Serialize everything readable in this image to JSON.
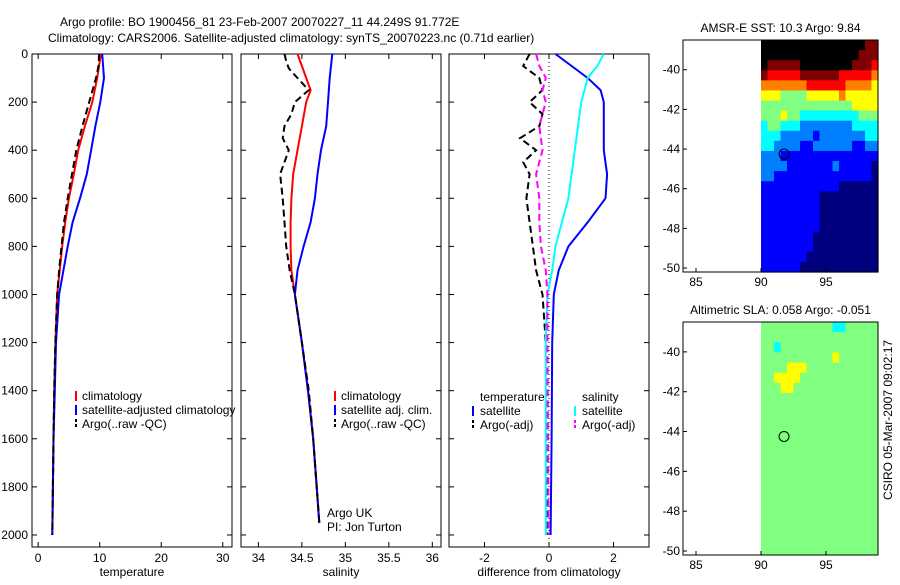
{
  "header": {
    "line1": "Argo profile: BO 1900456_81 23-Feb-2007 20070227_11 44.249S 91.772E",
    "line2": "Climatology: CARS2006. Satellite-adjusted climatology: synTS_20070223.nc (0.71d earlier)"
  },
  "side_text": "CSIRO 05-Mar-2007 09:02:17",
  "chart_data": [
    {
      "type": "line",
      "panel": "temperature",
      "xlabel": "temperature",
      "xlim": [
        -1,
        31.5
      ],
      "ylim": [
        0,
        2050
      ],
      "x_ticks": [
        0,
        10,
        20,
        30
      ],
      "y_ticks": [
        0,
        200,
        400,
        600,
        800,
        1000,
        1200,
        1400,
        1600,
        1800,
        2000
      ],
      "legend_location": "lower-right",
      "legend": [
        "climatology",
        "satellite-adjusted climatology",
        "Argo(..raw -QC)"
      ],
      "series": [
        {
          "name": "climatology",
          "color": "#ff0000",
          "dash": "solid",
          "depth": [
            0,
            100,
            200,
            300,
            400,
            500,
            600,
            700,
            800,
            900,
            1000,
            1200,
            1400,
            1600,
            1800,
            2000
          ],
          "values": [
            10.2,
            9.6,
            8.8,
            7.6,
            6.5,
            5.8,
            5.0,
            4.4,
            3.9,
            3.5,
            3.1,
            2.8,
            2.6,
            2.5,
            2.4,
            2.3
          ]
        },
        {
          "name": "satellite-adjusted climatology",
          "color": "#0000ff",
          "dash": "solid",
          "depth": [
            0,
            100,
            200,
            300,
            400,
            500,
            600,
            700,
            800,
            900,
            1000,
            1200,
            1400,
            1600,
            1800,
            2000
          ],
          "values": [
            10.4,
            10.7,
            10.1,
            9.3,
            8.6,
            7.9,
            6.8,
            5.6,
            4.8,
            4.1,
            3.4,
            2.9,
            2.7,
            2.5,
            2.4,
            2.3
          ]
        },
        {
          "name": "Argo(..raw -QC)",
          "color": "#000000",
          "dash": "dashed",
          "depth": [
            0,
            50,
            100,
            200,
            300,
            400,
            500,
            600,
            700,
            800,
            900,
            1000,
            1200,
            1400,
            1600,
            1800,
            2000
          ],
          "values": [
            9.9,
            9.8,
            9.4,
            8.3,
            7.2,
            6.2,
            5.5,
            4.8,
            4.2,
            3.8,
            3.4,
            3.1,
            2.8,
            2.6,
            2.5,
            2.4,
            2.3
          ]
        }
      ]
    },
    {
      "type": "line",
      "panel": "salinity",
      "xlabel": "salinity",
      "xlim": [
        33.8,
        36.1
      ],
      "ylim": [
        0,
        2050
      ],
      "x_ticks": [
        34,
        34.5,
        35,
        35.5,
        36
      ],
      "legend_location": "lower-right",
      "legend": [
        "climatology",
        "satellite adj. clim.",
        "Argo(..raw -QC)"
      ],
      "annotation": [
        "Argo UK",
        "PI: Jon Turton"
      ],
      "series": [
        {
          "name": "climatology",
          "color": "#ff0000",
          "dash": "solid",
          "depth": [
            0,
            50,
            100,
            150,
            200,
            300,
            400,
            500,
            600,
            700,
            800,
            900,
            1000,
            1200,
            1400,
            1600,
            1800,
            1950
          ],
          "values": [
            34.45,
            34.5,
            34.55,
            34.6,
            34.55,
            34.5,
            34.45,
            34.4,
            34.38,
            34.37,
            34.37,
            34.38,
            34.42,
            34.5,
            34.57,
            34.63,
            34.67,
            34.7
          ]
        },
        {
          "name": "satellite adj. clim.",
          "color": "#0000ff",
          "dash": "solid",
          "depth": [
            0,
            100,
            200,
            300,
            400,
            500,
            600,
            700,
            800,
            900,
            1000,
            1200,
            1400,
            1600,
            1800,
            1950
          ],
          "values": [
            34.85,
            34.82,
            34.8,
            34.78,
            34.72,
            34.68,
            34.65,
            34.6,
            34.52,
            34.45,
            34.42,
            34.5,
            34.57,
            34.63,
            34.67,
            34.7
          ]
        },
        {
          "name": "Argo(..raw -QC)",
          "color": "#000000",
          "dash": "dashed",
          "depth": [
            0,
            30,
            60,
            100,
            150,
            200,
            250,
            300,
            350,
            400,
            500,
            600,
            700,
            800,
            900,
            1000,
            1200,
            1400,
            1600,
            1800,
            1950
          ],
          "values": [
            34.3,
            34.32,
            34.35,
            34.45,
            34.58,
            34.42,
            34.38,
            34.3,
            34.28,
            34.35,
            34.25,
            34.28,
            34.3,
            34.32,
            34.36,
            34.42,
            34.5,
            34.58,
            34.63,
            34.67,
            34.7
          ]
        }
      ]
    },
    {
      "type": "line",
      "panel": "difference",
      "xlabel": "difference from climatology",
      "xlim": [
        -3.1,
        3.1
      ],
      "ylim": [
        0,
        2050
      ],
      "x_ticks": [
        -2,
        0,
        2
      ],
      "zero_line": true,
      "legend_location": "lower-right",
      "legend_groups": [
        {
          "heading": "temperature",
          "items": [
            "satellite",
            "Argo(-adj)"
          ]
        },
        {
          "heading": "salinity",
          "items": [
            "satellite",
            "Argo(-adj)"
          ]
        }
      ],
      "series": [
        {
          "name": "satellite",
          "group": "temperature",
          "color": "#0000ff",
          "dash": "solid",
          "depth": [
            0,
            50,
            100,
            150,
            200,
            300,
            400,
            500,
            600,
            700,
            800,
            900,
            1000,
            1200,
            1600,
            2000
          ],
          "values": [
            0.2,
            0.7,
            1.2,
            1.6,
            1.7,
            1.7,
            1.7,
            1.8,
            1.75,
            1.2,
            0.6,
            0.3,
            0.15,
            0.1,
            0.08,
            0.05
          ]
        },
        {
          "name": "Argo(-adj)",
          "group": "temperature",
          "color": "#000000",
          "dash": "dashed",
          "depth": [
            0,
            50,
            100,
            150,
            200,
            250,
            300,
            350,
            400,
            450,
            500,
            600,
            700,
            800,
            900,
            1000,
            1200,
            1600,
            2000
          ],
          "values": [
            -0.6,
            -0.8,
            -0.3,
            -0.2,
            -0.6,
            -0.2,
            -0.3,
            -0.9,
            -0.4,
            -0.8,
            -0.6,
            -0.7,
            -0.6,
            -0.5,
            -0.4,
            -0.2,
            -0.1,
            -0.08,
            -0.05
          ]
        },
        {
          "name": "satellite",
          "group": "salinity",
          "color": "#00ffff",
          "dash": "solid",
          "depth": [
            0,
            50,
            100,
            150,
            200,
            300,
            400,
            500,
            600,
            700,
            800,
            900,
            1000,
            1200,
            1600,
            2000
          ],
          "values": [
            1.7,
            1.5,
            1.2,
            1.1,
            1.0,
            0.9,
            0.8,
            0.7,
            0.6,
            0.4,
            0.2,
            0.1,
            -0.05,
            -0.1,
            -0.1,
            -0.1
          ]
        },
        {
          "name": "Argo(-adj)",
          "group": "salinity",
          "color": "#ff00ff",
          "dash": "dashed",
          "depth": [
            0,
            50,
            100,
            150,
            200,
            300,
            400,
            500,
            600,
            700,
            800,
            900,
            1000,
            1200,
            1600,
            2000
          ],
          "values": [
            -0.4,
            -0.3,
            -0.1,
            -0.2,
            -0.1,
            -0.3,
            -0.2,
            -0.4,
            -0.3,
            -0.3,
            -0.25,
            -0.1,
            -0.05,
            -0.05,
            -0.03,
            -0.02
          ]
        }
      ]
    },
    {
      "type": "heatmap",
      "panel": "sst-map",
      "title": "AMSR-E SST: 10.3 Argo: 9.84",
      "xlim": [
        84,
        99
      ],
      "ylim": [
        -50.2,
        -38.5
      ],
      "x_ticks": [
        85,
        90,
        95
      ],
      "y_ticks": [
        -50,
        -48,
        -46,
        -44,
        -42,
        -40
      ],
      "data_xlim": [
        90,
        99
      ],
      "colormap": [
        "#00007f",
        "#0000ff",
        "#0080ff",
        "#00ffff",
        "#80ff80",
        "#ffff00",
        "#ff8000",
        "#ff0000",
        "#7f0000"
      ],
      "marker": {
        "lon": 91.772,
        "lat": -44.249
      },
      "cell_deg": [
        0.5,
        0.5
      ],
      "rows_from_north": [
        "999999999999999988",
        "999999999999999888",
        "988888999999998887",
        "877777888888777776",
        "666666677777766665",
        "555444455555655555",
        "444444444444445555",
        "444544333333333444",
        "344333222222223333",
        "333222221222222233",
        "332222112222221122",
        "222111111111111111",
        "222211111112111110",
        "221111111111111110",
        "111111111111000000",
        "111111111000000000",
        "111111111000000000",
        "111111111000000000",
        "111111111000000000",
        "111111110000000000",
        "111111110000000000",
        "111111100000000000",
        "111111000000000000"
      ]
    },
    {
      "type": "heatmap",
      "panel": "sla-map",
      "title": "Altimetric SLA: 0.058 Argo: -0.051",
      "xlim": [
        84,
        99
      ],
      "ylim": [
        -50.2,
        -38.5
      ],
      "x_ticks": [
        85,
        90,
        95
      ],
      "y_ticks": [
        -50,
        -48,
        -46,
        -44,
        -42,
        -40
      ],
      "data_xlim": [
        90,
        99
      ],
      "colormap": [
        "#00007f",
        "#0000ff",
        "#0080ff",
        "#00ffff",
        "#80ff80",
        "#ffff00",
        "#ff8000",
        "#ff0000",
        "#7f0000"
      ],
      "marker": {
        "lon": 91.772,
        "lat": -44.249
      },
      "cell_deg": [
        0.5,
        0.5
      ],
      "rows_from_north": [
        "444444444443344444",
        "444444444444444444",
        "443444444444444444",
        "444444444445444444",
        "444455544444444444",
        "445555444444444444",
        "444554444444444444",
        "444444444444444444",
        "444444444444444444",
        "444444444444444444",
        "444444444444444444",
        "444444444444444444",
        "444444444444444444",
        "444444444444444444",
        "444444444444444444",
        "444444444444444444",
        "444444444444444444",
        "444444444444444444",
        "444444444444444444",
        "444444444444444444",
        "444444444444444444",
        "444444444444444444",
        "444444444444444444"
      ]
    }
  ]
}
